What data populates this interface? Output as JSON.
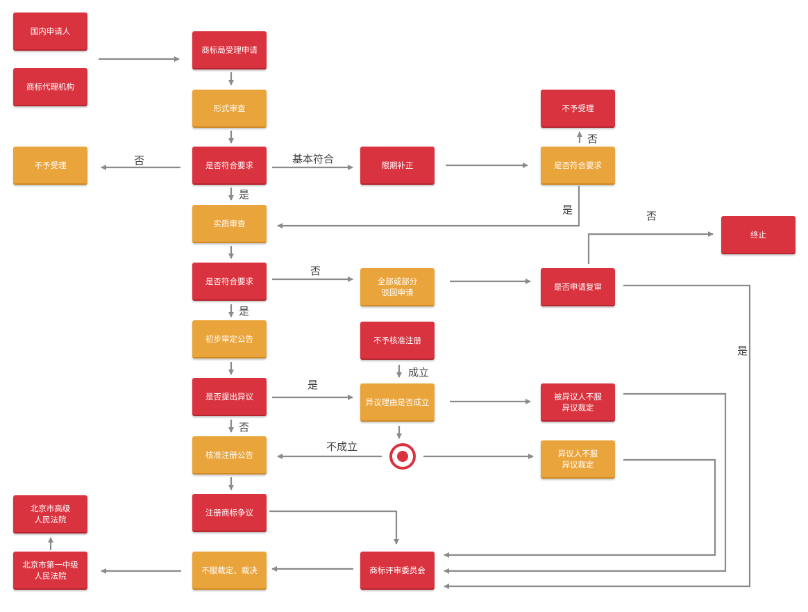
{
  "nodes": {
    "domestic_applicant": "国内申请人",
    "tm_agency": "商标代理机构",
    "tmo_accept": "商标局受理申请",
    "formal_exam": "形式审查",
    "meets_req_1": "是否符合要求",
    "not_accepted_left": "不予受理",
    "limited_correction": "限期补正",
    "meets_req_2": "是否符合要求",
    "not_accepted_right": "不予受理",
    "substantive_exam": "实质审查",
    "meets_req_3": "是否符合要求",
    "reject_all_or_part": "全部或部分\n驳回申请",
    "apply_review": "是否申请复审",
    "terminate": "终止",
    "prelim_announce": "初步审定公告",
    "not_approved_reg": "不予核准注册",
    "opposition_raised": "是否提出异议",
    "opposition_valid": "异议理由是否成立",
    "opponee_disagree": "被异议人不服\n异议裁定",
    "approve_announce": "核准注册公告",
    "opponent_disagree": "异议人不服\n异议裁定",
    "reg_dispute": "注册商标争议",
    "tm_review_board": "商标评审委员会",
    "disagree_ruling": "不服裁定、裁决",
    "beijing_first_court": "北京市第一中级\n人民法院",
    "beijing_high_court": "北京市高级\n人民法院"
  },
  "labels": {
    "no_left": "否",
    "basic_conform": "基本符合",
    "yes_1": "是",
    "no_top_right": "否",
    "yes_right": "是",
    "no_terminate": "否",
    "no_reject": "否",
    "yes_2": "是",
    "yes_review": "是",
    "established": "成立",
    "yes_opposition": "是",
    "no_opposition": "否",
    "not_established": "不成立"
  },
  "colors": {
    "red": "#d9333f",
    "orange": "#eaa43c",
    "arrow": "#8a8a8a",
    "target": "#d9333f"
  }
}
